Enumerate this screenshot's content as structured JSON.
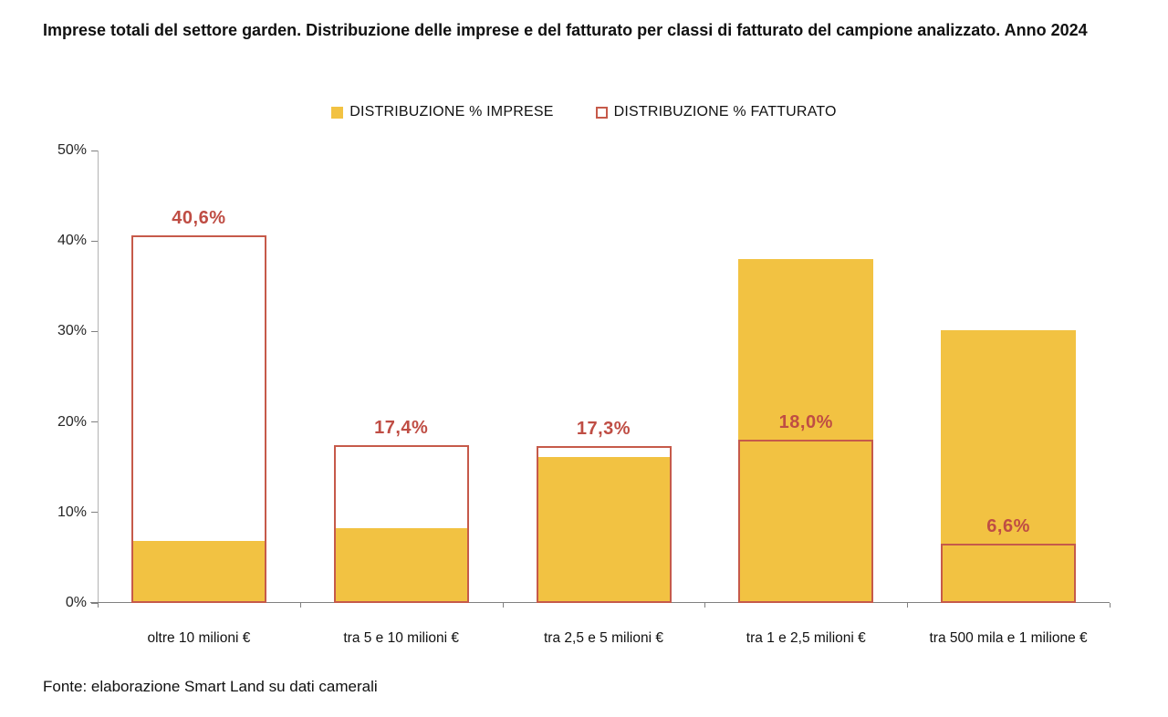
{
  "title": "Imprese totali del settore garden. Distribuzione delle imprese e del fatturato per classi di fatturato del campione analizzato. Anno 2024",
  "footer": "Fonte: elaborazione Smart Land su dati camerali",
  "colors": {
    "bar_fill": "#F2C242",
    "bar_outline": "#C65A4A",
    "value_label": "#BF4D44",
    "axis": "#808080"
  },
  "legend": {
    "items": [
      {
        "label": "DISTRIBUZIONE % IMPRESE",
        "swatch": "filled-yellow-square"
      },
      {
        "label": "DISTRIBUZIONE % FATTURATO",
        "swatch": "outlined-red-square"
      }
    ]
  },
  "chart_data": {
    "type": "bar",
    "title": "",
    "xlabel": "",
    "ylabel": "",
    "categories": [
      "oltre 10 milioni €",
      "tra 5 e 10 milioni €",
      "tra 2,5 e 5 milioni €",
      "tra 1 e 2,5 milioni €",
      "tra 500 mila e 1 milione €"
    ],
    "series": [
      {
        "name": "DISTRIBUZIONE % IMPRESE",
        "style": "filled",
        "values": [
          6.9,
          8.3,
          16.1,
          38.0,
          30.1
        ],
        "note": "values estimated from bar heights; no data labels shown"
      },
      {
        "name": "DISTRIBUZIONE % FATTURATO",
        "style": "outlined",
        "values": [
          40.6,
          17.4,
          17.3,
          18.0,
          6.6
        ],
        "labels": [
          "40,6%",
          "17,4%",
          "17,3%",
          "18,0%",
          "6,6%"
        ]
      }
    ],
    "ylim": [
      0,
      50
    ],
    "yticks": [
      "0%",
      "10%",
      "20%",
      "30%",
      "40%",
      "50%"
    ],
    "grid": false,
    "legend_position": "top-center"
  }
}
